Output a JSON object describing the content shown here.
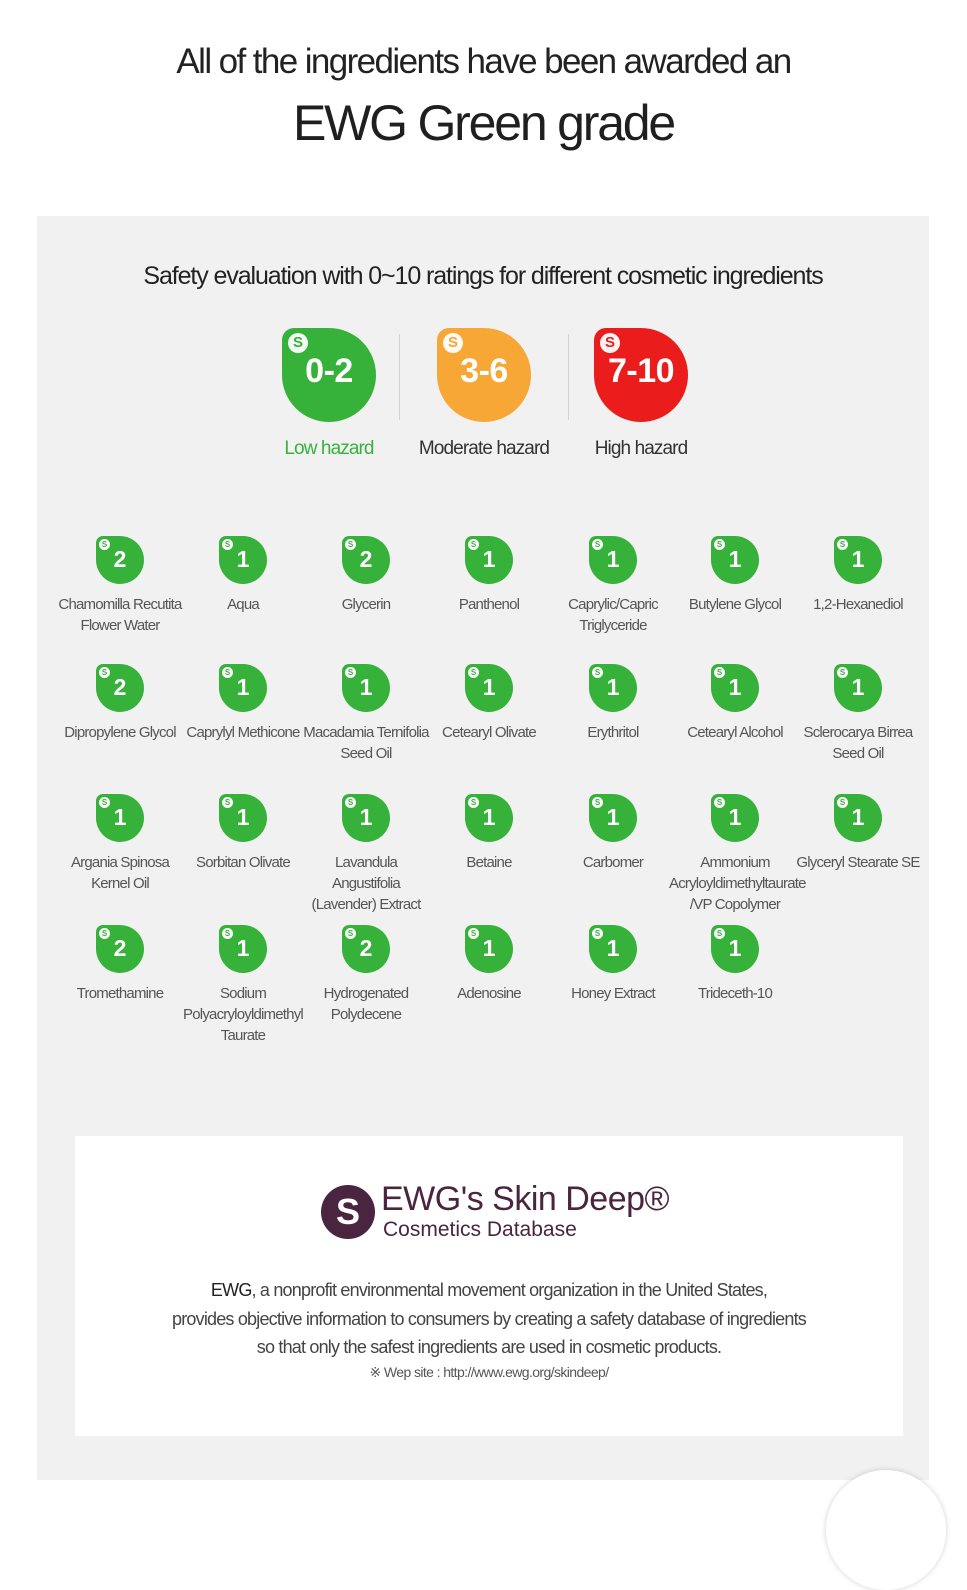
{
  "headline": {
    "line1": "All of the ingredients have been awarded an",
    "line2": "EWG Green grade"
  },
  "panel": {
    "title": "Safety evaluation with 0~10 ratings for different cosmetic ingredients"
  },
  "grades": [
    {
      "range": "0-2",
      "label": "Low hazard",
      "color": "#36b23a"
    },
    {
      "range": "3-6",
      "label": "Moderate hazard",
      "color": "#f6a735"
    },
    {
      "range": "7-10",
      "label": "High hazard",
      "color": "#ea1c1c"
    }
  ],
  "ingredients": [
    {
      "score": "2",
      "name": "Chamomilla Recutita Flower Water"
    },
    {
      "score": "1",
      "name": "Aqua"
    },
    {
      "score": "2",
      "name": "Glycerin"
    },
    {
      "score": "1",
      "name": "Panthenol"
    },
    {
      "score": "1",
      "name": "Caprylic/Capric Triglyceride"
    },
    {
      "score": "1",
      "name": "Butylene Glycol"
    },
    {
      "score": "1",
      "name": "1,2-Hexanediol"
    },
    {
      "score": "2",
      "name": "Dipropylene Glycol"
    },
    {
      "score": "1",
      "name": "Caprylyl Methicone"
    },
    {
      "score": "1",
      "name": "Macadamia Ternifolia Seed Oil"
    },
    {
      "score": "1",
      "name": "Cetearyl Olivate"
    },
    {
      "score": "1",
      "name": "Erythritol"
    },
    {
      "score": "1",
      "name": "Cetearyl Alcohol"
    },
    {
      "score": "1",
      "name": "Sclerocarya Birrea Seed Oil"
    },
    {
      "score": "1",
      "name": "Argania Spinosa Kernel Oil"
    },
    {
      "score": "1",
      "name": "Sorbitan Olivate"
    },
    {
      "score": "1",
      "name": "Lavandula Angustifolia (Lavender) Extract"
    },
    {
      "score": "1",
      "name": "Betaine"
    },
    {
      "score": "1",
      "name": "Carbomer"
    },
    {
      "score": "1",
      "name": "Ammonium Acryloyldimethyltaurate /VP Copolymer"
    },
    {
      "score": "1",
      "name": "Glyceryl Stearate SE"
    },
    {
      "score": "2",
      "name": "Tromethamine"
    },
    {
      "score": "1",
      "name": "Sodium Polyacryloyldimethyl Taurate"
    },
    {
      "score": "2",
      "name": "Hydrogenated Polydecene"
    },
    {
      "score": "1",
      "name": "Adenosine"
    },
    {
      "score": "1",
      "name": "Honey Extract"
    },
    {
      "score": "1",
      "name": "Trideceth-10"
    }
  ],
  "info": {
    "logo_mark": "S",
    "brand": "EWG's Skin Deep®",
    "subtitle": "Cosmetics Database",
    "desc_ewg": "EWG",
    "desc_line1_rest": ", a nonprofit environmental movement organization in the United States,",
    "desc_line2": "provides objective information to consumers by creating a safety database of ingredients",
    "desc_line3": "so that only the safest ingredients are used in cosmetic products.",
    "website": "※ Wep site : http://www.ewg.org/skindeep/"
  }
}
